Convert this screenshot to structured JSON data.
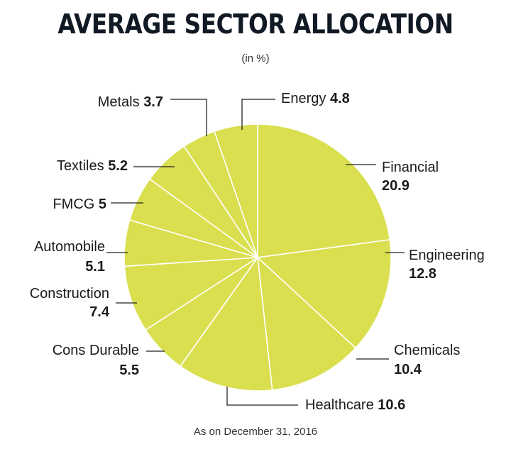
{
  "header": {
    "title": "AVERAGE SECTOR ALLOCATION",
    "subtitle": "(in %)"
  },
  "footnote": "As on December 31, 2016",
  "chart_data": {
    "type": "pie",
    "slice_color": "#d9df4e",
    "line_color": "#ffffff",
    "leader_color": "#222222",
    "series": [
      {
        "label": "Financial",
        "value": 20.9
      },
      {
        "label": "Engineering",
        "value": 12.8
      },
      {
        "label": "Chemicals",
        "value": 10.4
      },
      {
        "label": "Healthcare",
        "value": 10.6
      },
      {
        "label": "Cons Durable",
        "value": 5.5
      },
      {
        "label": "Construction",
        "value": 7.4
      },
      {
        "label": "Automobile",
        "value": 5.1
      },
      {
        "label": "FMCG",
        "value": 5
      },
      {
        "label": "Textiles",
        "value": 5.2
      },
      {
        "label": "Metals",
        "value": 3.7
      },
      {
        "label": "Energy",
        "value": 4.8
      }
    ]
  }
}
